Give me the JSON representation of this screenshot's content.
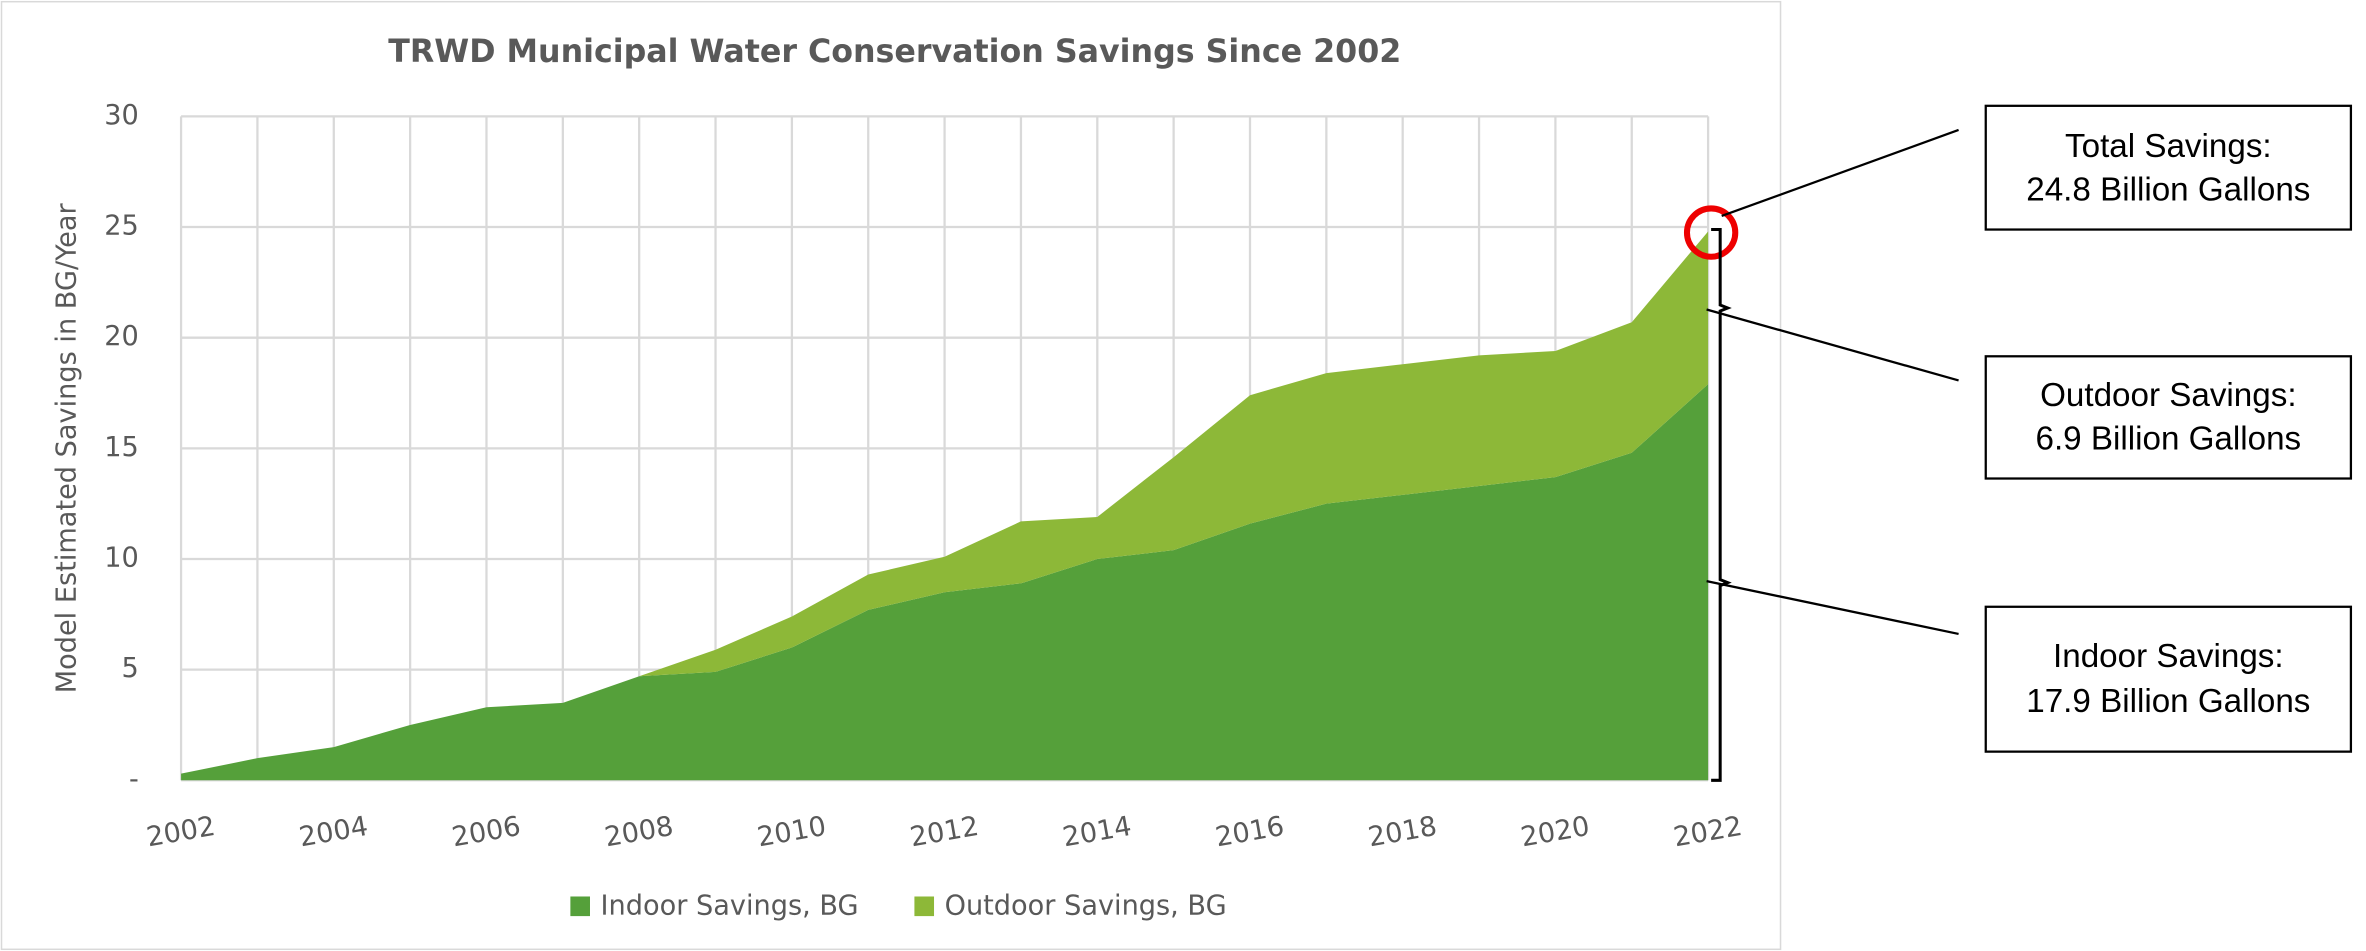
{
  "chart_data": {
    "type": "stacked-area",
    "title": "TRWD Municipal Water Conservation Savings Since 2002",
    "y_label": "Model Estimated Savings in BG/Year",
    "x": [
      2002,
      2003,
      2004,
      2005,
      2006,
      2007,
      2008,
      2009,
      2010,
      2011,
      2012,
      2013,
      2014,
      2015,
      2016,
      2017,
      2018,
      2019,
      2020,
      2021,
      2022
    ],
    "xlim": [
      2002,
      2022
    ],
    "xticks": [
      2002,
      2004,
      2006,
      2008,
      2010,
      2012,
      2014,
      2016,
      2018,
      2020,
      2022
    ],
    "ylim": [
      0,
      30
    ],
    "yticks": [
      {
        "value": 0,
        "label": "-"
      },
      5,
      10,
      15,
      20,
      25,
      30
    ],
    "grid": true,
    "legend": "bottom",
    "series": [
      {
        "name": "Indoor Savings, BG",
        "color": "#55a03a",
        "values": [
          0.3,
          1.0,
          1.5,
          2.5,
          3.3,
          3.5,
          4.7,
          4.9,
          6.0,
          7.7,
          8.5,
          8.9,
          10.0,
          10.4,
          11.6,
          12.5,
          12.9,
          13.3,
          13.7,
          14.8,
          17.9
        ]
      },
      {
        "name": "Outdoor Savings, BG",
        "color": "#8db838",
        "values": [
          0,
          0,
          0,
          0,
          0,
          0,
          0,
          1.0,
          1.4,
          1.6,
          1.6,
          2.8,
          1.9,
          4.2,
          5.8,
          5.9,
          5.9,
          5.9,
          5.7,
          5.9,
          6.9
        ]
      }
    ],
    "annotations": [
      {
        "lines": [
          "Total Savings:",
          "24.8 Billion Gallons"
        ]
      },
      {
        "lines": [
          "Outdoor Savings:",
          "6.9 Billion Gallons"
        ]
      },
      {
        "lines": [
          "Indoor Savings:",
          "17.9 Billion Gallons"
        ]
      }
    ]
  }
}
